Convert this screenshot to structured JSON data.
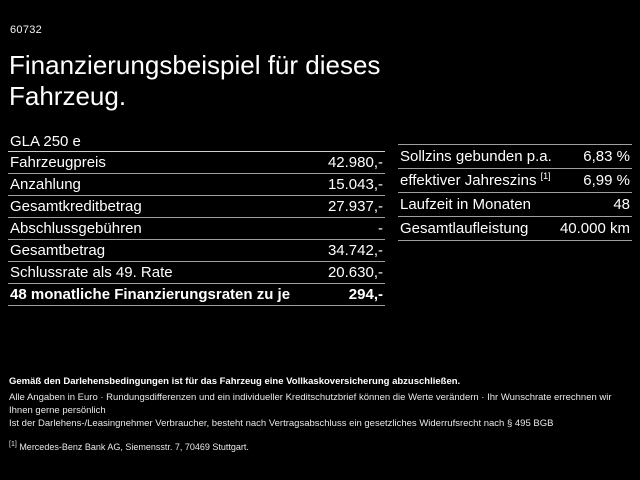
{
  "page": {
    "code": "60732",
    "title": "Finanzierungsbeispiel für dieses Fahrzeug."
  },
  "colors": {
    "background": "#000000",
    "text": "#ffffff",
    "divider": "#9f9f9f"
  },
  "finance_table": {
    "model": "GLA 250 e",
    "rows": [
      {
        "label": "Fahrzeugpreis",
        "value": "42.980,-"
      },
      {
        "label": "Anzahlung",
        "value": "15.043,-"
      },
      {
        "label": "Gesamtkreditbetrag",
        "value": "27.937,-"
      },
      {
        "label": "Abschlussgebühren",
        "value": "-"
      },
      {
        "label": "Gesamtbetrag",
        "value": "34.742,-"
      },
      {
        "label": "Schlussrate als 49. Rate",
        "value": "20.630,-"
      },
      {
        "label": "48 monatliche Finanzierungsraten zu je",
        "value": "294,-"
      }
    ]
  },
  "conditions_table": {
    "rows": [
      {
        "label": "Sollzins gebunden p.a.",
        "sup": "",
        "value": "6,83 %"
      },
      {
        "label": "effektiver Jahreszins",
        "sup": "[1]",
        "value": "6,99 %"
      },
      {
        "label": "Laufzeit in Monaten",
        "sup": "",
        "value": "48"
      },
      {
        "label": "Gesamtlaufleistung",
        "sup": "",
        "value": "40.000 km"
      }
    ]
  },
  "footer": {
    "line1_bold": "Gemäß den Darlehensbedingungen ist für das Fahrzeug eine Vollkaskoversicherung abzuschließen.",
    "line2": "Alle Angaben in Euro · Rundungsdifferenzen und ein individueller Kreditschutzbrief können die Werte verändern · Ihr Wunschrate errechnen wir Ihnen gerne persönlich",
    "line3": "Ist der Darlehens-/Leasingnehmer Verbraucher, besteht nach Vertragsabschluss ein gesetzliches Widerrufsrecht nach § 495 BGB",
    "footnote_marker": "[1]",
    "footnote_text": "Mercedes-Benz Bank AG, Siemensstr. 7, 70469 Stuttgart."
  }
}
